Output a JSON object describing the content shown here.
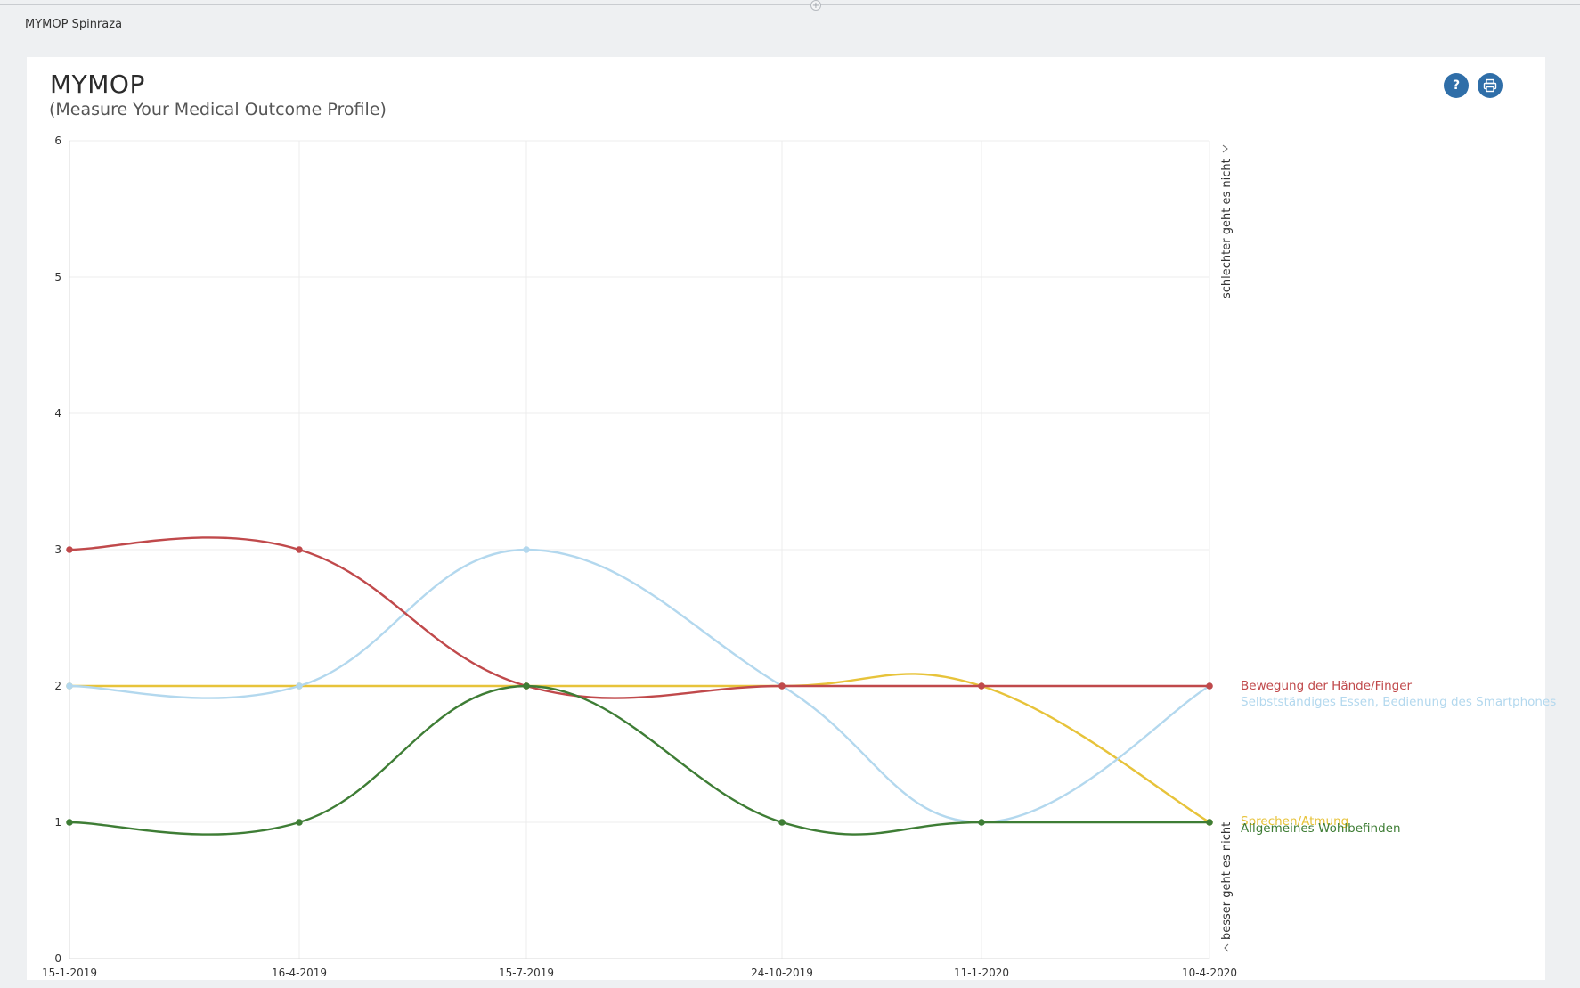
{
  "app": {
    "title": "MYMOP Spinraza"
  },
  "header": {
    "title": "MYMOP",
    "subtitle": "(Measure Your Medical Outcome Profile)",
    "help_label": "?",
    "help_icon": "help-icon",
    "print_icon": "print-icon"
  },
  "chart_data": {
    "type": "line",
    "x": [
      "15-1-2019",
      "16-4-2019",
      "15-7-2019",
      "24-10-2019",
      "11-1-2020",
      "10-4-2020"
    ],
    "ylim": [
      0,
      6
    ],
    "yticks": [
      "0",
      "1",
      "2",
      "3",
      "4",
      "5",
      "6"
    ],
    "grid": true,
    "right_axis": {
      "top_label": "schlechter geht es nicht",
      "bottom_label": "besser geht es nicht"
    },
    "series": [
      {
        "name": "Bewegung der Hände/Finger",
        "color": "#c0494b",
        "values": [
          3,
          3,
          2,
          2,
          2,
          2
        ]
      },
      {
        "name": "Selbstständiges Essen, Bedienung des Smartphones",
        "color": "#b3d8ee",
        "values": [
          2,
          2,
          3,
          2,
          1,
          2
        ]
      },
      {
        "name": "Sprechen/Atmung",
        "color": "#e7c33a",
        "values": [
          2,
          2,
          2,
          2,
          2,
          1
        ]
      },
      {
        "name": "Allgemeines Wohlbefinden",
        "color": "#3e7d35",
        "values": [
          1,
          1,
          2,
          1,
          1,
          1
        ]
      }
    ]
  }
}
